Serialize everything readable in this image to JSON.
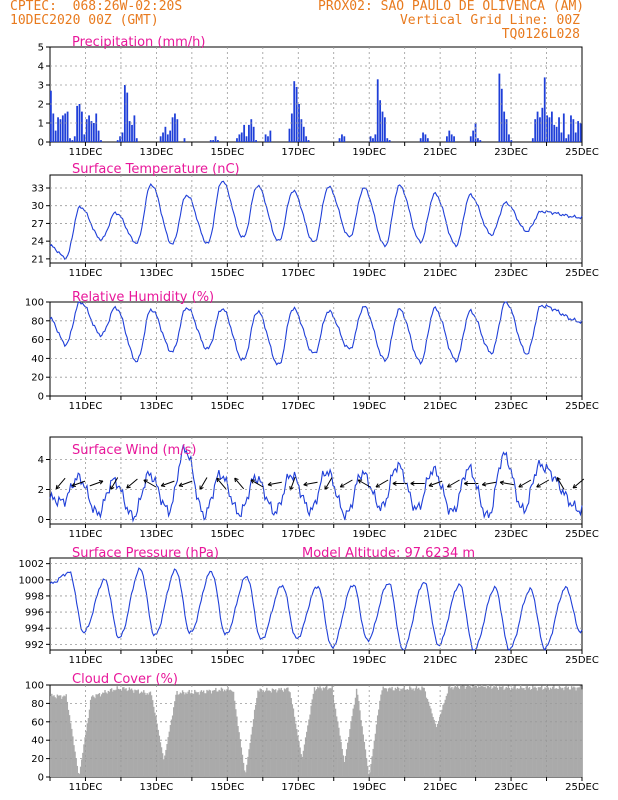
{
  "header": {
    "left_line1": "CPTEC:  068:26W-02:20S",
    "mid_line1": "PROX02: SAO PAULO DE OLIVENCA (AM)",
    "left_line2": "10DEC2020 00Z (GMT)",
    "right_line2": "Vertical Grid Line: 00Z",
    "right_line3": "TQ0126L028"
  },
  "chart_data": [
    {
      "type": "bar",
      "title": "Precipitation (mm/h)",
      "x_tick_labels": [
        "11DEC",
        "13DEC",
        "15DEC",
        "17DEC",
        "19DEC",
        "21DEC",
        "23DEC",
        "25DEC"
      ],
      "xlim_days": [
        10,
        25
      ],
      "ylim": [
        0,
        5
      ],
      "y_ticks": [
        0,
        1,
        2,
        3,
        4,
        5
      ],
      "hourly_interval": "3h",
      "series": [
        {
          "values": [
            2.7,
            1.5,
            0.6,
            1.3,
            1.2,
            1.4,
            1.5,
            1.6,
            0.2,
            0.1,
            0.3,
            1.9,
            2.0,
            1.6,
            0.4,
            1.2,
            1.4,
            1.1,
            1.0,
            1.5,
            0.6,
            0.1,
            0,
            0,
            0,
            0,
            0,
            0,
            0.1,
            0.3,
            0.5,
            3.0,
            2.6,
            1.1,
            0.9,
            1.4,
            0.2,
            0,
            0,
            0,
            0,
            0,
            0,
            0,
            0,
            0,
            0.3,
            0.5,
            0.8,
            0.4,
            0.6,
            1.3,
            1.5,
            1.2,
            0,
            0,
            0.2,
            0,
            0,
            0,
            0,
            0,
            0,
            0,
            0,
            0,
            0,
            0.1,
            0.1,
            0.3,
            0.1,
            0,
            0,
            0,
            0,
            0,
            0,
            0,
            0.2,
            0.4,
            0.5,
            0.9,
            0.3,
            0.9,
            1.2,
            0.8,
            0.1,
            0,
            0,
            0,
            0.4,
            0.3,
            0.6,
            0,
            0,
            0,
            0,
            0,
            0,
            0,
            0.7,
            1.5,
            3.2,
            2.9,
            2.0,
            1.2,
            0.8,
            0.3,
            0.1,
            0,
            0,
            0,
            0,
            0,
            0,
            0,
            0,
            0,
            0,
            0,
            0,
            0.2,
            0.4,
            0.3,
            0,
            0,
            0,
            0,
            0,
            0,
            0,
            0,
            0,
            0,
            0.3,
            0.2,
            0.4,
            3.3,
            2.2,
            1.6,
            1.3,
            0.2,
            0.1,
            0,
            0,
            0,
            0,
            0,
            0,
            0,
            0,
            0,
            0,
            0,
            0,
            0.2,
            0.5,
            0.4,
            0.2,
            0,
            0,
            0,
            0,
            0,
            0,
            0,
            0.3,
            0.6,
            0.4,
            0.3,
            0,
            0,
            0,
            0,
            0,
            0,
            0.3,
            0.6,
            1.0,
            0.2,
            0.1,
            0,
            0,
            0,
            0,
            0,
            0,
            0,
            3.6,
            2.8,
            1.6,
            1.2,
            0.4,
            0.1,
            0,
            0,
            0,
            0,
            0,
            0,
            0,
            0,
            0.2,
            1.2,
            1.6,
            1.3,
            1.8,
            3.4,
            1.4,
            1.3,
            1.6,
            0.9,
            0.8,
            1.3,
            0.5,
            1.5,
            0.2,
            0.4,
            1.4,
            1.2,
            0.5,
            1.1,
            1.0
          ]
        }
      ]
    },
    {
      "type": "line",
      "title": "Surface Temperature (nC)",
      "x_tick_labels": [
        "11DEC",
        "13DEC",
        "15DEC",
        "17DEC",
        "19DEC",
        "21DEC",
        "23DEC",
        "25DEC"
      ],
      "xlim_days": [
        10,
        25
      ],
      "ylim": [
        20.3,
        35.2
      ],
      "y_ticks": [
        21,
        24,
        27,
        30,
        33
      ],
      "daily_max": [
        29.8,
        28.8,
        33.6,
        31.8,
        34.2,
        33.4,
        32.5,
        33.2,
        33.0,
        33.4,
        32.0,
        31.8,
        30.5,
        29.0
      ],
      "daily_min": [
        21.2,
        24.3,
        23.7,
        23.5,
        23.6,
        24.6,
        24.0,
        23.8,
        24.7,
        23.2,
        23.9,
        23.3,
        25.1,
        25.7
      ],
      "start_value": 23.2,
      "end_value": 28.0
    },
    {
      "type": "line",
      "title": "Relative Humidity (%)",
      "x_tick_labels": [
        "11DEC",
        "13DEC",
        "15DEC",
        "17DEC",
        "19DEC",
        "21DEC",
        "23DEC",
        "25DEC"
      ],
      "xlim_days": [
        10,
        25
      ],
      "ylim": [
        0,
        100
      ],
      "y_ticks": [
        0,
        20,
        40,
        60,
        80,
        100
      ],
      "daily_max": [
        100,
        94,
        92,
        94,
        93,
        90,
        93,
        90,
        95,
        92,
        93,
        90,
        100,
        96
      ],
      "daily_min": [
        55,
        65,
        37,
        47,
        50,
        38,
        33,
        45,
        50,
        38,
        36,
        38,
        46,
        45
      ],
      "start_value": 82,
      "end_value": 79
    },
    {
      "type": "line",
      "title": "Surface Wind (m/s)",
      "x_tick_labels": [
        "11DEC",
        "13DEC",
        "15DEC",
        "17DEC",
        "19DEC",
        "21DEC",
        "23DEC",
        "25DEC"
      ],
      "xlim_days": [
        10,
        25
      ],
      "ylim": [
        -0.3,
        5.5
      ],
      "y_ticks": [
        0,
        2,
        4
      ],
      "peaks": [
        2.8,
        2.6,
        3.0,
        4.7,
        3.0,
        2.8,
        3.0,
        3.2,
        3.1,
        3.6,
        3.3,
        3.4,
        4.3,
        3.6
      ],
      "troughs": [
        1.2,
        0.4,
        0.2,
        0.6,
        0.3,
        0.4,
        0.5,
        0.6,
        0.3,
        0.8,
        0.7,
        0.5,
        0.2,
        0.6
      ],
      "wind_direction_arrows_deg": [
        220,
        250,
        70,
        210,
        230,
        300,
        250,
        250,
        210,
        320,
        320,
        300,
        260,
        200,
        260,
        210,
        240,
        300,
        240,
        270,
        270,
        250,
        240,
        270,
        260,
        280,
        240,
        240,
        330,
        230
      ]
    },
    {
      "type": "line",
      "title": "Surface Pressure (hPa)",
      "annotation": "Model Altitude: 97.6234 m",
      "x_tick_labels": [
        "11DEC",
        "13DEC",
        "15DEC",
        "17DEC",
        "19DEC",
        "21DEC",
        "23DEC",
        "25DEC"
      ],
      "xlim_days": [
        10,
        25
      ],
      "ylim": [
        991.3,
        1002.7
      ],
      "y_ticks": [
        992,
        994,
        996,
        998,
        1000,
        1002
      ],
      "diurnal_max": [
        1000.9,
        1000.0,
        1001.3,
        1001.2,
        1001.0,
        1000.4,
        999.3,
        999.2,
        999.4,
        999.6,
        999.7,
        999.4,
        999.0,
        998.8,
        999.0
      ],
      "diurnal_min": [
        993.5,
        992.8,
        993.1,
        993.4,
        993.2,
        992.6,
        992.7,
        991.6,
        992.5,
        991.3,
        991.9,
        991.3,
        991.4,
        991.5,
        993.6
      ]
    },
    {
      "type": "area",
      "title": "Cloud Cover (%)",
      "x_tick_labels": [
        "11DEC",
        "13DEC",
        "15DEC",
        "17DEC",
        "19DEC",
        "21DEC",
        "23DEC",
        "25DEC"
      ],
      "xlim_days": [
        10,
        25
      ],
      "ylim": [
        0,
        100
      ],
      "y_ticks": [
        0,
        20,
        40,
        60,
        80,
        100
      ],
      "color": "#aaaaaa",
      "daily_values": [
        88,
        87,
        96,
        90,
        92,
        95,
        94,
        96,
        97,
        96,
        96,
        97,
        99,
        97,
        97
      ],
      "clear_dips": [
        {
          "day": 10.8,
          "value": 0
        },
        {
          "day": 13.2,
          "value": 18
        },
        {
          "day": 15.5,
          "value": 2
        },
        {
          "day": 17.1,
          "value": 20
        },
        {
          "day": 18.3,
          "value": 16
        },
        {
          "day": 19.0,
          "value": 0
        },
        {
          "day": 20.9,
          "value": 54
        }
      ]
    }
  ]
}
